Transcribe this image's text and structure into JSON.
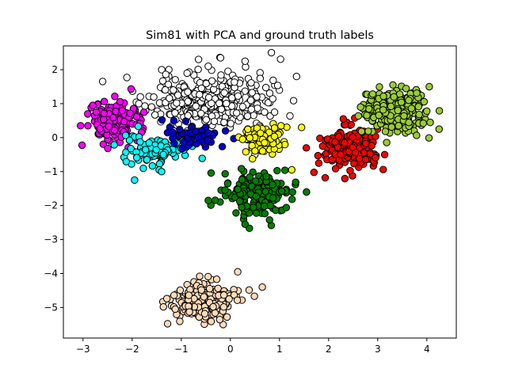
{
  "chart_data": {
    "type": "scatter",
    "title": "Sim81 with PCA and ground truth labels",
    "xlabel": "",
    "ylabel": "",
    "xlim": [
      -3.4,
      4.6
    ],
    "ylim": [
      -5.9,
      2.7
    ],
    "xticks": [
      -3,
      -2,
      -1,
      0,
      1,
      2,
      3,
      4
    ],
    "yticks": [
      -5,
      -4,
      -3,
      -2,
      -1,
      0,
      1,
      2
    ],
    "grid": false,
    "marker_edge_color": "#000000",
    "series": [
      {
        "color": "#ffffff",
        "center": [
          -0.45,
          1.05
        ],
        "spread": [
          0.62,
          0.42
        ],
        "count": 340,
        "seed": 11,
        "extra": [
          [
            -0.2,
            2.35
          ],
          [
            0.3,
            2.25
          ],
          [
            -0.45,
            2.1
          ],
          [
            0.9,
            0.75
          ],
          [
            0.5,
            -0.5
          ]
        ]
      },
      {
        "color": "#ff00ff",
        "center": [
          -2.35,
          0.45
        ],
        "spread": [
          0.26,
          0.3
        ],
        "count": 150,
        "seed": 23,
        "extra": [
          [
            -3.05,
            0.35
          ],
          [
            -2.9,
            0.35
          ],
          [
            -2.8,
            0.95
          ]
        ]
      },
      {
        "color": "#00ffff",
        "center": [
          -1.5,
          -0.35
        ],
        "spread": [
          0.32,
          0.22
        ],
        "count": 90,
        "seed": 37,
        "extra": [
          [
            -1.95,
            -1.25
          ],
          [
            -1.45,
            -0.95
          ],
          [
            -1.4,
            -1.0
          ]
        ]
      },
      {
        "color": "#0000cd",
        "center": [
          -0.75,
          0.05
        ],
        "spread": [
          0.25,
          0.17
        ],
        "count": 65,
        "seed": 41,
        "extra": [
          [
            -1.15,
            0.5
          ],
          [
            -0.1,
            0.2
          ]
        ]
      },
      {
        "color": "#ffff00",
        "center": [
          0.65,
          -0.05
        ],
        "spread": [
          0.22,
          0.2
        ],
        "count": 95,
        "seed": 53,
        "extra": [
          [
            1.45,
            0.3
          ],
          [
            1.25,
            -0.95
          ],
          [
            0.25,
            -0.05
          ]
        ]
      },
      {
        "color": "#008000",
        "center": [
          0.5,
          -1.65
        ],
        "spread": [
          0.34,
          0.3
        ],
        "count": 210,
        "seed": 61,
        "extra": [
          [
            1.55,
            -1.6
          ],
          [
            -0.45,
            -1.85
          ],
          [
            0.3,
            -2.55
          ]
        ]
      },
      {
        "color": "#ff0000",
        "center": [
          2.45,
          -0.3
        ],
        "spread": [
          0.3,
          0.3
        ],
        "count": 200,
        "seed": 71,
        "extra": [
          [
            1.8,
            -0.75
          ],
          [
            2.3,
            0.55
          ]
        ]
      },
      {
        "color": "#9acd32",
        "center": [
          3.3,
          0.8
        ],
        "spread": [
          0.33,
          0.33
        ],
        "count": 260,
        "seed": 83,
        "extra": [
          [
            4.05,
            1.5
          ],
          [
            4.25,
            0.25
          ],
          [
            2.65,
            0.9
          ]
        ]
      },
      {
        "color": "#ffdab9",
        "center": [
          -0.55,
          -4.85
        ],
        "spread": [
          0.32,
          0.28
        ],
        "count": 220,
        "seed": 97,
        "extra": [
          [
            0.65,
            -4.4
          ],
          [
            0.15,
            -3.95
          ]
        ]
      }
    ]
  }
}
